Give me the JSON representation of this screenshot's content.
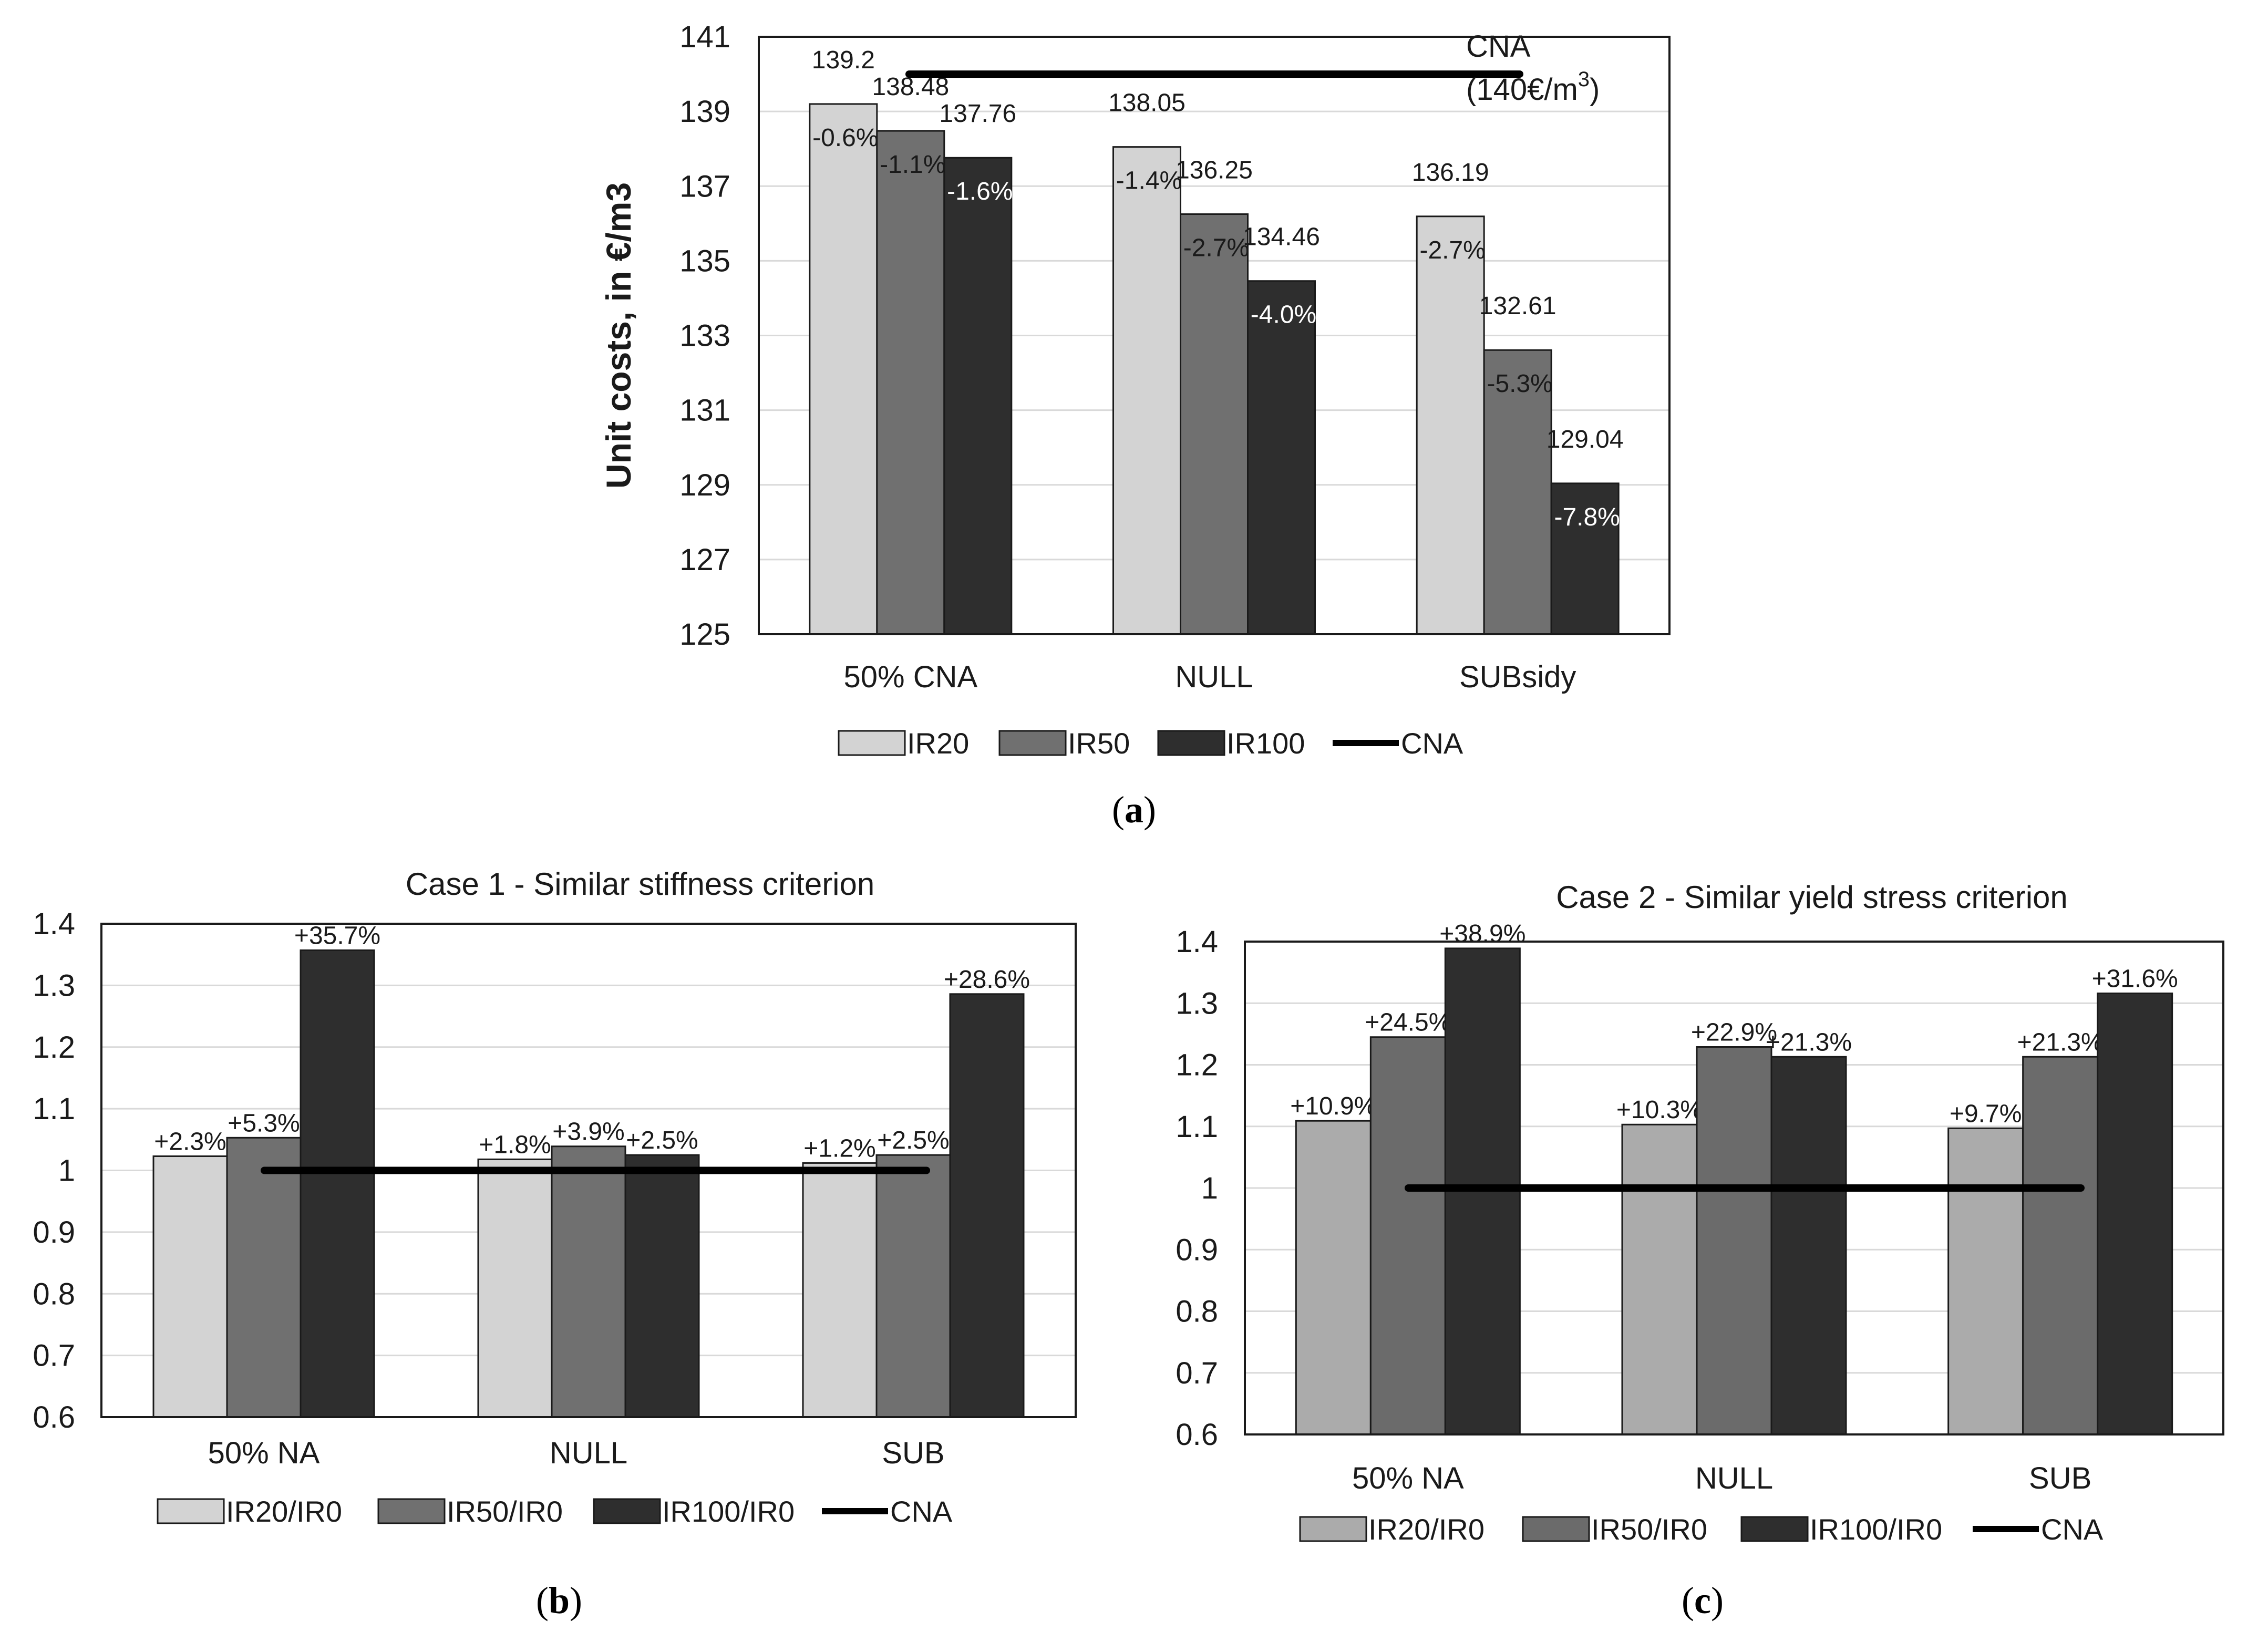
{
  "chart_data": [
    {
      "id": "a",
      "type": "bar",
      "panel_label": "a",
      "title": "",
      "xlabel": "",
      "ylabel": "Unit costs, in €/m3",
      "ylim": [
        125,
        141
      ],
      "yticks": [
        "125",
        "127",
        "129",
        "131",
        "133",
        "135",
        "137",
        "139",
        "141"
      ],
      "categories": [
        "50% CNA",
        "NULL",
        "SUBsidy"
      ],
      "series": [
        {
          "name": "IR20",
          "color": "#d3d3d3",
          "values": [
            139.2,
            138.05,
            136.19
          ],
          "value_labels": [
            "139.2",
            "138.05",
            "136.19"
          ],
          "pct_labels": [
            "-0.6%",
            "-1.4%",
            "-2.7%"
          ]
        },
        {
          "name": "IR50",
          "color": "#707070",
          "values": [
            138.48,
            136.25,
            132.61
          ],
          "value_labels": [
            "138.48",
            "136.25",
            "132.61"
          ],
          "pct_labels": [
            "-1.1%",
            "-2.7%",
            "-5.3%"
          ]
        },
        {
          "name": "IR100",
          "color": "#2e2e2e",
          "values": [
            137.76,
            134.46,
            129.04
          ],
          "value_labels": [
            "137.76",
            "134.46",
            "129.04"
          ],
          "pct_labels": [
            "-1.6%",
            "-4.0%",
            "-7.8%"
          ]
        }
      ],
      "reference_line": {
        "name": "CNA",
        "value": 140,
        "label_line1": "CNA",
        "label_line2_prefix": "(140€/m",
        "label_line2_sup": "3",
        "label_line2_suffix": ")"
      },
      "legend": [
        "IR20",
        "IR50",
        "IR100",
        "CNA"
      ]
    },
    {
      "id": "b",
      "type": "bar",
      "panel_label": "b",
      "title": "Case 1 - Similar stiffness criterion",
      "xlabel": "",
      "ylabel": "",
      "ylim": [
        0.6,
        1.4
      ],
      "yticks": [
        "0.6",
        "0.7",
        "0.8",
        "0.9",
        "1",
        "1.1",
        "1.2",
        "1.3",
        "1.4"
      ],
      "categories": [
        "50% NA",
        "NULL",
        "SUB"
      ],
      "series": [
        {
          "name": "IR20/IR0",
          "color": "#d3d3d3",
          "values": [
            1.023,
            1.018,
            1.012
          ],
          "value_labels": [
            "+2.3%",
            "+1.8%",
            "+1.2%"
          ]
        },
        {
          "name": "IR50/IR0",
          "color": "#707070",
          "values": [
            1.053,
            1.039,
            1.025
          ],
          "value_labels": [
            "+5.3%",
            "+3.9%",
            "+2.5%"
          ]
        },
        {
          "name": "IR100/IR0",
          "color": "#2e2e2e",
          "values": [
            1.357,
            1.025,
            1.286
          ],
          "value_labels": [
            "+35.7%",
            "+2.5%",
            "+28.6%"
          ]
        }
      ],
      "reference_line": {
        "name": "CNA",
        "value": 1.0
      },
      "legend": [
        "IR20/IR0",
        "IR50/IR0",
        "IR100/IR0",
        "CNA"
      ]
    },
    {
      "id": "c",
      "type": "bar",
      "panel_label": "c",
      "title": "Case 2 - Similar yield stress criterion",
      "xlabel": "",
      "ylabel": "",
      "ylim": [
        0.6,
        1.4
      ],
      "yticks": [
        "0.6",
        "0.7",
        "0.8",
        "0.9",
        "1",
        "1.1",
        "1.2",
        "1.3",
        "1.4"
      ],
      "categories": [
        "50% NA",
        "NULL",
        "SUB"
      ],
      "series": [
        {
          "name": "IR20/IR0",
          "color": "#ababab",
          "values": [
            1.109,
            1.103,
            1.097
          ],
          "value_labels": [
            "+10.9%",
            "+10.3%",
            "+9.7%"
          ]
        },
        {
          "name": "IR50/IR0",
          "color": "#6b6b6b",
          "values": [
            1.245,
            1.229,
            1.213
          ],
          "value_labels": [
            "+24.5%",
            "+22.9%",
            "+21.3%"
          ]
        },
        {
          "name": "IR100/IR0",
          "color": "#2e2e2e",
          "values": [
            1.389,
            1.213,
            1.316
          ],
          "value_labels": [
            "+38.9%",
            "+21.3%",
            "+31.6%"
          ]
        }
      ],
      "reference_line": {
        "name": "CNA",
        "value": 1.0
      },
      "legend": [
        "IR20/IR0",
        "IR50/IR0",
        "IR100/IR0",
        "CNA"
      ]
    }
  ]
}
